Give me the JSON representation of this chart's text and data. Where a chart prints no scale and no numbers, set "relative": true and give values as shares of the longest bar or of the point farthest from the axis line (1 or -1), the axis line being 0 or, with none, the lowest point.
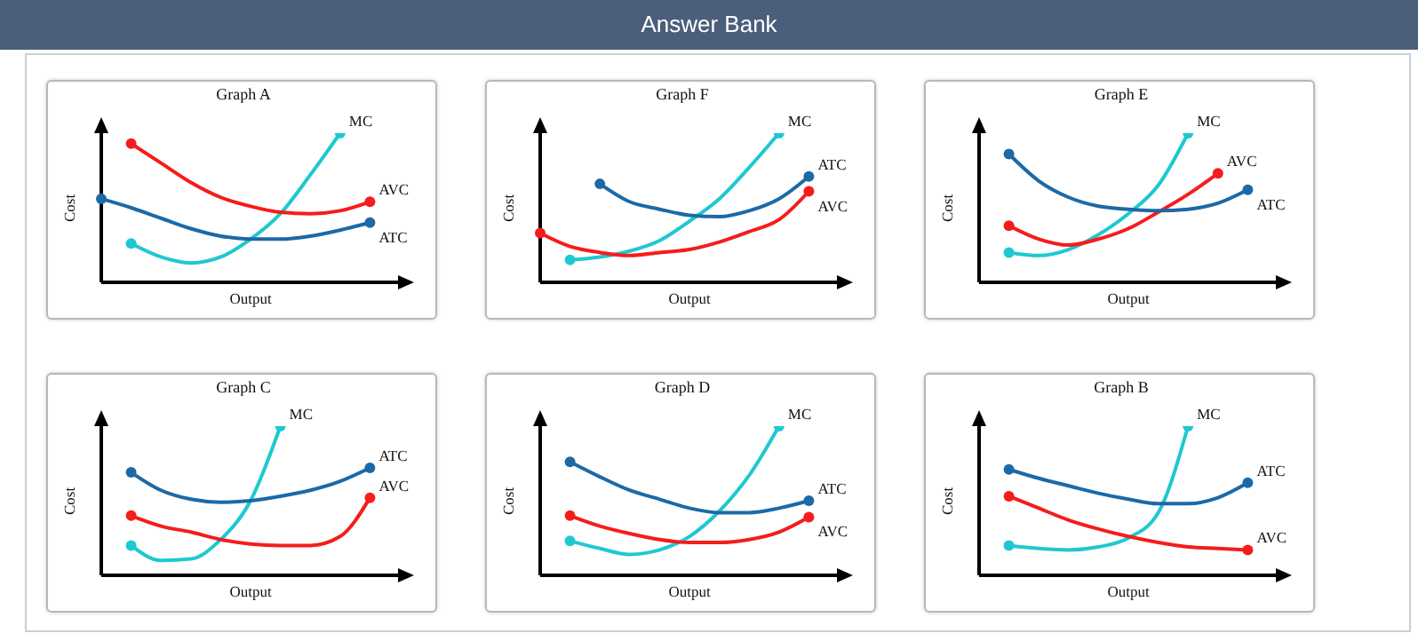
{
  "chart_data": [
    {
      "type": "line",
      "title": "Graph A",
      "xlabel": "Output",
      "ylabel": "Cost",
      "relative": true,
      "annotations": [
        "Answer Bank"
      ],
      "categories": [
        null,
        null,
        null,
        null,
        null,
        null,
        null,
        null,
        null,
        null,
        null
      ],
      "series": [
        {
          "name": "MC",
          "color": "#1fc8d0",
          "values": [
            null,
            0.26,
            0.17,
            0.13,
            0.17,
            0.29,
            0.46,
            0.72,
            1.0,
            null,
            null
          ]
        },
        {
          "name": "AVC",
          "color": "#f51c1c",
          "values": [
            null,
            0.93,
            0.8,
            0.67,
            0.57,
            0.51,
            0.47,
            0.46,
            0.48,
            0.54,
            null
          ]
        },
        {
          "name": "ATC",
          "color": "#1c69a6",
          "values": [
            0.56,
            0.5,
            0.43,
            0.36,
            0.31,
            0.29,
            0.29,
            0.31,
            0.35,
            0.4,
            null
          ]
        }
      ]
    },
    {
      "type": "line",
      "title": "Graph F",
      "xlabel": "Output",
      "ylabel": "Cost",
      "relative": true,
      "categories": [
        null,
        null,
        null,
        null,
        null,
        null,
        null,
        null,
        null,
        null,
        null
      ],
      "series": [
        {
          "name": "MC",
          "color": "#1fc8d0",
          "values": [
            null,
            0.15,
            0.17,
            0.21,
            0.28,
            0.41,
            0.56,
            0.77,
            1.0,
            null,
            null
          ]
        },
        {
          "name": "AVC",
          "color": "#f51c1c",
          "values": [
            0.33,
            0.24,
            0.2,
            0.18,
            0.2,
            0.22,
            0.27,
            0.34,
            0.42,
            0.61,
            null
          ]
        },
        {
          "name": "ATC",
          "color": "#1c69a6",
          "values": [
            null,
            null,
            0.66,
            0.54,
            0.49,
            0.45,
            0.44,
            0.48,
            0.56,
            0.71,
            null
          ]
        }
      ]
    },
    {
      "type": "line",
      "title": "Graph E",
      "xlabel": "Output",
      "ylabel": "Cost",
      "relative": true,
      "categories": [
        null,
        null,
        null,
        null,
        null,
        null,
        null,
        null,
        null,
        null,
        null
      ],
      "series": [
        {
          "name": "MC",
          "color": "#1fc8d0",
          "values": [
            null,
            0.2,
            0.18,
            0.22,
            0.32,
            0.46,
            0.65,
            1.0,
            null,
            null,
            null
          ]
        },
        {
          "name": "AVC",
          "color": "#f51c1c",
          "values": [
            null,
            0.38,
            0.29,
            0.25,
            0.29,
            0.36,
            0.47,
            0.59,
            0.73,
            null,
            null
          ]
        },
        {
          "name": "ATC",
          "color": "#1c69a6",
          "values": [
            null,
            0.86,
            0.68,
            0.57,
            0.51,
            0.49,
            0.48,
            0.49,
            0.53,
            0.62,
            null
          ]
        }
      ]
    },
    {
      "type": "line",
      "title": "Graph C",
      "xlabel": "Output",
      "ylabel": "Cost",
      "relative": true,
      "categories": [
        null,
        null,
        null,
        null,
        null,
        null,
        null,
        null,
        null,
        null,
        null
      ],
      "series": [
        {
          "name": "MC",
          "color": "#1fc8d0",
          "values": [
            null,
            0.2,
            0.1,
            0.11,
            0.24,
            0.5,
            1.0,
            null,
            null,
            null,
            null
          ]
        },
        {
          "name": "ATC",
          "color": "#1c69a6",
          "values": [
            null,
            0.69,
            0.57,
            0.51,
            0.49,
            0.5,
            0.53,
            0.57,
            0.63,
            0.72,
            null
          ]
        },
        {
          "name": "AVC",
          "color": "#f51c1c",
          "values": [
            null,
            0.4,
            0.33,
            0.29,
            0.24,
            0.21,
            0.2,
            0.2,
            0.26,
            0.52,
            null
          ]
        }
      ]
    },
    {
      "type": "line",
      "title": "Graph D",
      "xlabel": "Output",
      "ylabel": "Cost",
      "relative": true,
      "categories": [
        null,
        null,
        null,
        null,
        null,
        null,
        null,
        null,
        null,
        null,
        null
      ],
      "series": [
        {
          "name": "MC",
          "color": "#1fc8d0",
          "values": [
            null,
            0.23,
            0.18,
            0.14,
            0.17,
            0.26,
            0.43,
            0.67,
            1.0,
            null,
            null
          ]
        },
        {
          "name": "ATC",
          "color": "#1c69a6",
          "values": [
            null,
            0.76,
            0.66,
            0.57,
            0.51,
            0.45,
            0.42,
            0.42,
            0.45,
            0.5,
            null
          ]
        },
        {
          "name": "AVC",
          "color": "#f51c1c",
          "values": [
            null,
            0.4,
            0.33,
            0.28,
            0.24,
            0.22,
            0.22,
            0.24,
            0.29,
            0.39,
            null
          ]
        }
      ]
    },
    {
      "type": "line",
      "title": "Graph B",
      "xlabel": "Output",
      "ylabel": "Cost",
      "relative": true,
      "categories": [
        null,
        null,
        null,
        null,
        null,
        null,
        null,
        null,
        null,
        null,
        null
      ],
      "series": [
        {
          "name": "MC",
          "color": "#1fc8d0",
          "values": [
            null,
            0.2,
            0.18,
            0.17,
            0.19,
            0.25,
            0.42,
            1.0,
            null,
            null,
            null
          ]
        },
        {
          "name": "ATC",
          "color": "#1c69a6",
          "values": [
            null,
            0.71,
            0.65,
            0.6,
            0.55,
            0.51,
            0.48,
            0.48,
            0.52,
            0.62,
            null
          ]
        },
        {
          "name": "AVC",
          "color": "#f51c1c",
          "values": [
            null,
            0.53,
            0.45,
            0.37,
            0.31,
            0.26,
            0.22,
            0.19,
            0.18,
            0.17,
            null
          ]
        }
      ]
    }
  ]
}
